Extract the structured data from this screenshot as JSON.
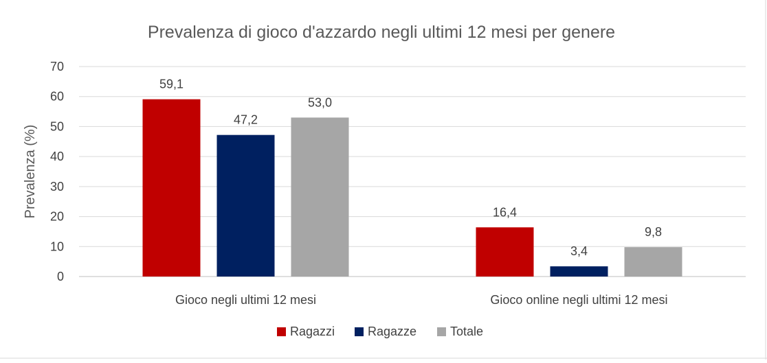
{
  "chart_data": {
    "type": "bar",
    "title": "Prevalenza di gioco d'azzardo negli ultimi 12 mesi per genere",
    "xlabel": "",
    "ylabel": "Prevalenza (%)",
    "ylim": [
      0,
      70
    ],
    "yticks": [
      0,
      10,
      20,
      30,
      40,
      50,
      60,
      70
    ],
    "grid": true,
    "legend_position": "bottom",
    "categories": [
      "Gioco negli ultimi 12 mesi",
      "Gioco online negli ultimi 12 mesi"
    ],
    "series": [
      {
        "name": "Ragazzi",
        "color": "#C00000",
        "values": [
          59.1,
          16.4
        ],
        "labels": [
          "59,1",
          "16,4"
        ]
      },
      {
        "name": "Ragazze",
        "color": "#002060",
        "values": [
          47.2,
          3.4
        ],
        "labels": [
          "47,2",
          "3,4"
        ]
      },
      {
        "name": "Totale",
        "color": "#A6A6A6",
        "values": [
          53.0,
          9.8
        ],
        "labels": [
          "53,0",
          "9,8"
        ]
      }
    ]
  }
}
